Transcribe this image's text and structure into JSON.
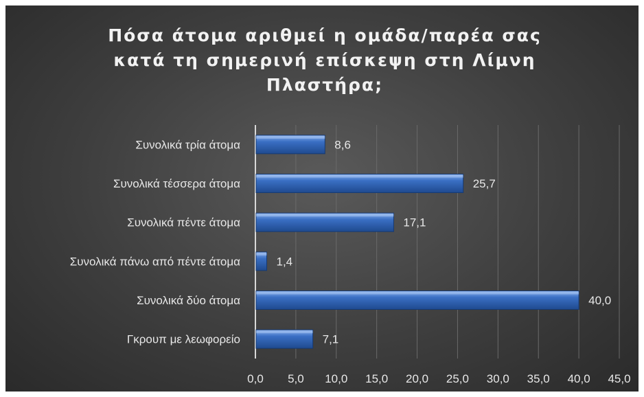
{
  "chart_data": {
    "type": "bar",
    "orientation": "horizontal",
    "title": "Πόσα άτομα αριθμεί η ομάδα/παρέα σας κατά τη σημερινή επίσκεψη στη Λίμνη Πλαστήρα;",
    "categories": [
      "Συνολικά τρία άτομα",
      "Συνολικά τέσσερα άτομα",
      "Συνολικά πέντε άτομα",
      "Συνολικά πάνω από πέντε άτομα",
      "Συνολικά δύο άτομα",
      "Γκρουπ με λεωφορείο"
    ],
    "values": [
      8.6,
      25.7,
      17.1,
      1.4,
      40.0,
      7.1
    ],
    "value_labels": [
      "8,6",
      "25,7",
      "17,1",
      "1,4",
      "40,0",
      "7,1"
    ],
    "x_ticks": [
      "0,0",
      "5,0",
      "10,0",
      "15,0",
      "20,0",
      "25,0",
      "30,0",
      "35,0",
      "40,0",
      "45,0"
    ],
    "xlim": [
      0,
      45
    ],
    "xlabel": "",
    "ylabel": "",
    "grid": "vertical",
    "legend": "none",
    "colors": {
      "bar": "#3a6fc4",
      "bar_light": "#7fa6e6",
      "bar_dark": "#1f4a8f",
      "background": "#404040",
      "text": "#e8e8e8",
      "grid": "#6a6a6a"
    }
  }
}
